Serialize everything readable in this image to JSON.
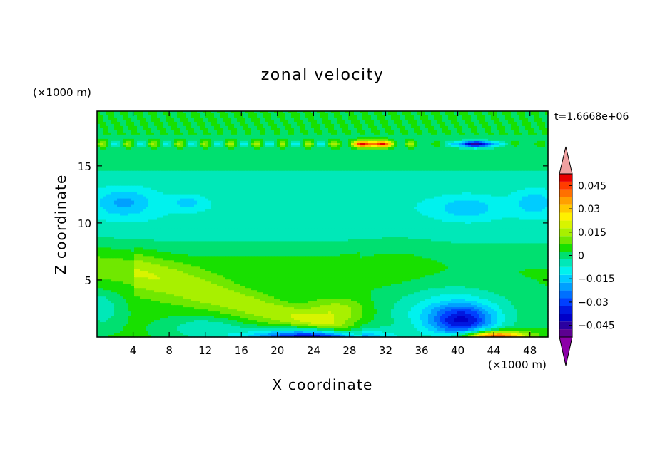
{
  "chart_data": {
    "type": "heatmap",
    "title": "zonal velocity",
    "time_label": "t=1.6668e+06",
    "xlabel": "X coordinate",
    "ylabel": "Z coordinate",
    "x_unit": "(×1000 m)",
    "y_unit": "(×1000 m)",
    "x_ticks": [
      4,
      8,
      12,
      16,
      20,
      24,
      28,
      32,
      36,
      40,
      44,
      48
    ],
    "y_ticks": [
      5,
      10,
      15
    ],
    "xlim": [
      0,
      50
    ],
    "ylim": [
      0,
      19.8
    ],
    "colorbar": {
      "tick_values": [
        0.045,
        0.03,
        0.015,
        0,
        -0.015,
        -0.03,
        -0.045
      ],
      "tick_labels": [
        "0.045",
        "0.03",
        "0.015",
        "0",
        "−0.015",
        "−0.03",
        "−0.045"
      ],
      "levels": [
        -0.0525,
        -0.0475,
        -0.0425,
        -0.0375,
        -0.0325,
        -0.0275,
        -0.0225,
        -0.0175,
        -0.0125,
        -0.0075,
        -0.0025,
        0.0025,
        0.0075,
        0.0125,
        0.0175,
        0.0225,
        0.0275,
        0.0325,
        0.0375,
        0.0425,
        0.0475,
        0.0525
      ],
      "colors": [
        "#5c0090",
        "#2a00a0",
        "#0000c8",
        "#0018e0",
        "#0040ff",
        "#0070ff",
        "#00a0ff",
        "#00ccff",
        "#00f2ee",
        "#00e8b8",
        "#00e070",
        "#18e000",
        "#70e800",
        "#a8f000",
        "#d8f400",
        "#fff000",
        "#ffc800",
        "#ffa000",
        "#ff7000",
        "#ff3c00",
        "#e80000"
      ],
      "under_color": "#8c00a8",
      "over_color": "#f0a0a0",
      "range": [
        -0.0525,
        0.0525
      ]
    }
  }
}
